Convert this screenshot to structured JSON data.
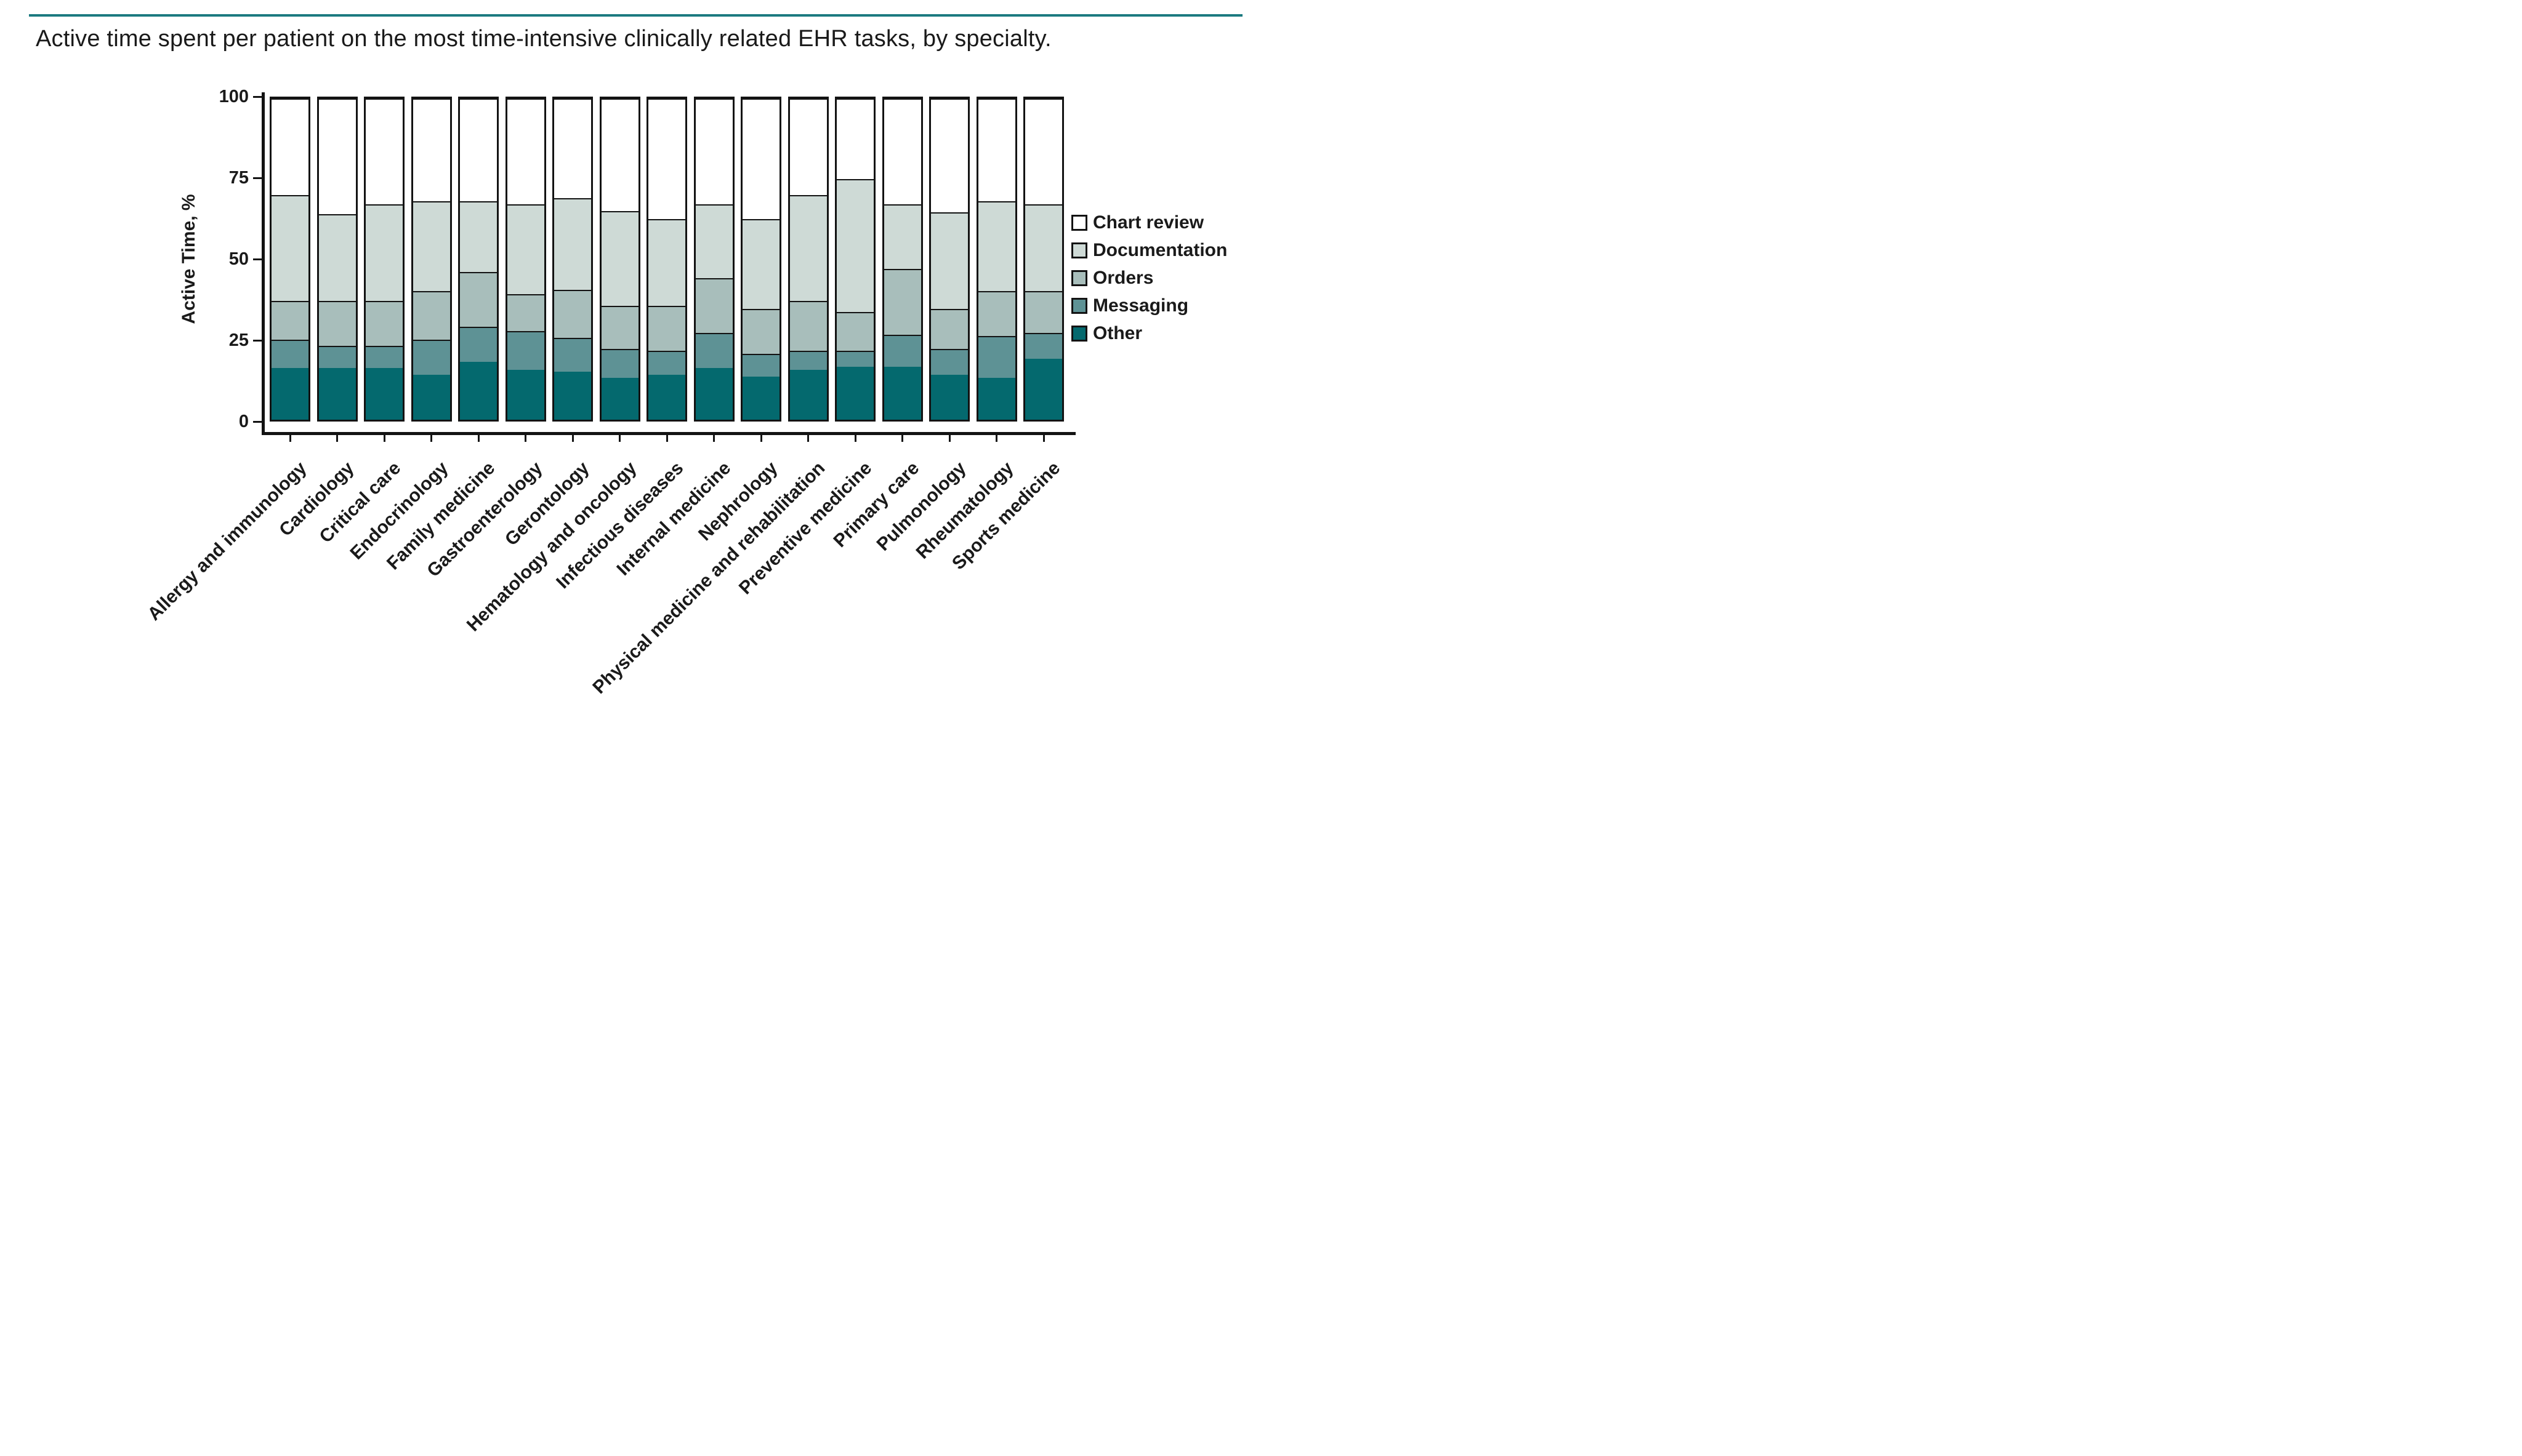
{
  "figure": {
    "title": "Active time spent per patient on the most time-intensive clinically related EHR tasks, by specialty.",
    "rule_color": "#1B7A80",
    "text_color": "#1A1A1A",
    "outline_color": "#131313"
  },
  "chart_data": {
    "type": "bar",
    "stacked": true,
    "orientation": "vertical",
    "title": "Active time spent per patient on the most time-intensive clinically related EHR tasks, by specialty.",
    "xlabel": "",
    "ylabel": "Active Time, %",
    "ylim": [
      0,
      100
    ],
    "yticks": [
      0,
      25,
      50,
      75,
      100
    ],
    "grid": false,
    "legend_position": "right",
    "legend_order_top_to_bottom": [
      "Chart review",
      "Documentation",
      "Orders",
      "Messaging",
      "Other"
    ],
    "categories": [
      "Allergy and immunology",
      "Cardiology",
      "Critical care",
      "Endocrinology",
      "Family medicine",
      "Gastroenterology",
      "Gerontology",
      "Hematology and oncology",
      "Infectious diseases",
      "Internal medicine",
      "Nephrology",
      "Physical medicine and rehabilitation",
      "Preventive medicine",
      "Primary care",
      "Pulmonology",
      "Rheumatology",
      "Sports medicine"
    ],
    "series": [
      {
        "name": "Other",
        "color": "#04696E",
        "values": [
          16,
          16,
          16,
          14,
          18,
          15.5,
          15,
          13,
          14,
          16,
          13.5,
          15.5,
          16.5,
          16.5,
          14,
          13,
          19
        ]
      },
      {
        "name": "Messaging",
        "color": "#5E9295",
        "values": [
          9,
          7,
          7,
          11,
          11,
          12,
          10.5,
          9,
          7.5,
          11,
          7,
          6,
          5,
          10,
          8,
          13,
          8
        ]
      },
      {
        "name": "Orders",
        "color": "#A8BEBB",
        "values": [
          12,
          14,
          14,
          15,
          17,
          11.5,
          15,
          13.5,
          14,
          17,
          14,
          15.5,
          12,
          20.5,
          12.5,
          14,
          13
        ]
      },
      {
        "name": "Documentation",
        "color": "#CEDAD6",
        "values": [
          33,
          27,
          30,
          28,
          22,
          28,
          28.5,
          29.5,
          27,
          23,
          28,
          33,
          41.5,
          20,
          30,
          28,
          27
        ]
      },
      {
        "name": "Chart review",
        "color": "#FFFFFF",
        "values": [
          30,
          36,
          33,
          32,
          32,
          33,
          31,
          35,
          37.5,
          33,
          37.5,
          30,
          25,
          33,
          35.5,
          32,
          33
        ]
      }
    ]
  }
}
